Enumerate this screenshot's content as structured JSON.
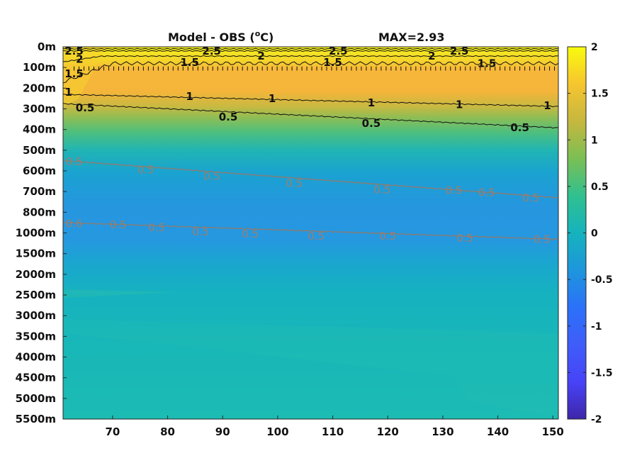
{
  "chart_data": {
    "type": "heatmap",
    "title": "Model - OBS (°C)",
    "title_parts": {
      "lead": "Model - OBS (",
      "sup": "o",
      "tail": "C)"
    },
    "max_label": "MAX=2.93",
    "y_ticks": [
      "0m",
      "100m",
      "200m",
      "300m",
      "400m",
      "500m",
      "600m",
      "700m",
      "800m",
      "1000m",
      "1500m",
      "2000m",
      "2500m",
      "3000m",
      "3500m",
      "4000m",
      "4500m",
      "5000m",
      "5500m"
    ],
    "x_ticks": [
      "70",
      "80",
      "90",
      "100",
      "110",
      "120",
      "130",
      "140",
      "150"
    ],
    "x_values": [
      70,
      80,
      90,
      100,
      110,
      120,
      130,
      140,
      150
    ],
    "xlim": [
      61,
      151
    ],
    "colorbar": {
      "ticks": [
        "2",
        "1.5",
        "1",
        "0.5",
        "0",
        "-0.5",
        "-1",
        "-1.5",
        "-2"
      ],
      "values": [
        2,
        1.5,
        1,
        0.5,
        0,
        -0.5,
        -1,
        -1.5,
        -2
      ],
      "range": [
        -2,
        2
      ],
      "colormap": [
        "#3e26a8",
        "#4743f8",
        "#2b71f9",
        "#1e96dc",
        "#15b3bd",
        "#30c090",
        "#7bbf54",
        "#c6b73f",
        "#f9bb33",
        "#f6df26",
        "#f9fb0e"
      ]
    },
    "contour_levels": [
      2.5,
      2,
      1.5,
      1,
      0.5,
      -0.5
    ],
    "contour_labels": [
      {
        "text": "2.5",
        "x": 63,
        "depth": 0.2,
        "cls": "pos"
      },
      {
        "text": "2.5",
        "x": 88,
        "depth": 0.2,
        "cls": "pos"
      },
      {
        "text": "2.5",
        "x": 111,
        "depth": 0.2,
        "cls": "pos"
      },
      {
        "text": "2.5",
        "x": 133,
        "depth": 0.2,
        "cls": "pos"
      },
      {
        "text": "2",
        "x": 64,
        "depth": 0.6,
        "cls": "pos"
      },
      {
        "text": "2",
        "x": 97,
        "depth": 0.45,
        "cls": "pos"
      },
      {
        "text": "2",
        "x": 128,
        "depth": 0.45,
        "cls": "pos"
      },
      {
        "text": "1.5",
        "x": 63,
        "depth": 1.3,
        "cls": "pos"
      },
      {
        "text": "1.5",
        "x": 84,
        "depth": 0.75,
        "cls": "pos"
      },
      {
        "text": "1.5",
        "x": 110,
        "depth": 0.75,
        "cls": "pos"
      },
      {
        "text": "1.5",
        "x": 138,
        "depth": 0.8,
        "cls": "pos"
      },
      {
        "text": "1",
        "x": 62,
        "depth": 2.2,
        "cls": "pos"
      },
      {
        "text": "1",
        "x": 84,
        "depth": 2.4,
        "cls": "pos"
      },
      {
        "text": "1",
        "x": 99,
        "depth": 2.5,
        "cls": "pos"
      },
      {
        "text": "1",
        "x": 117,
        "depth": 2.7,
        "cls": "pos"
      },
      {
        "text": "1",
        "x": 133,
        "depth": 2.8,
        "cls": "pos"
      },
      {
        "text": "1",
        "x": 149,
        "depth": 2.85,
        "cls": "pos"
      },
      {
        "text": "0.5",
        "x": 65,
        "depth": 2.95,
        "cls": "pos"
      },
      {
        "text": "0.5",
        "x": 91,
        "depth": 3.4,
        "cls": "pos"
      },
      {
        "text": "0.5",
        "x": 117,
        "depth": 3.7,
        "cls": "pos"
      },
      {
        "text": "0.5",
        "x": 144,
        "depth": 3.9,
        "cls": "pos"
      },
      {
        "text": "0.5",
        "x": 63,
        "depth": 5.55,
        "cls": "neg"
      },
      {
        "text": "0.5",
        "x": 76,
        "depth": 5.95,
        "cls": "neg"
      },
      {
        "text": "0.5",
        "x": 88,
        "depth": 6.25,
        "cls": "neg"
      },
      {
        "text": "0.5",
        "x": 103,
        "depth": 6.6,
        "cls": "neg"
      },
      {
        "text": "0.5",
        "x": 119,
        "depth": 6.9,
        "cls": "neg"
      },
      {
        "text": "0.5",
        "x": 132,
        "depth": 6.95,
        "cls": "neg"
      },
      {
        "text": "0.5",
        "x": 138,
        "depth": 7.05,
        "cls": "neg"
      },
      {
        "text": "0.5",
        "x": 146,
        "depth": 7.3,
        "cls": "neg"
      },
      {
        "text": "0.6",
        "x": 63,
        "depth": 8.55,
        "cls": "neg"
      },
      {
        "text": "0.5",
        "x": 71,
        "depth": 8.6,
        "cls": "neg"
      },
      {
        "text": "0.5",
        "x": 78,
        "depth": 8.75,
        "cls": "neg"
      },
      {
        "text": "0.5",
        "x": 86,
        "depth": 8.95,
        "cls": "neg"
      },
      {
        "text": "0.5",
        "x": 95,
        "depth": 9.05,
        "cls": "neg"
      },
      {
        "text": "0.5",
        "x": 107,
        "depth": 9.15,
        "cls": "neg"
      },
      {
        "text": "0.5",
        "x": 120,
        "depth": 9.15,
        "cls": "neg"
      },
      {
        "text": "0.5",
        "x": 134,
        "depth": 9.25,
        "cls": "neg"
      },
      {
        "text": "0.5",
        "x": 148,
        "depth": 9.3,
        "cls": "neg"
      }
    ],
    "grid": false
  }
}
